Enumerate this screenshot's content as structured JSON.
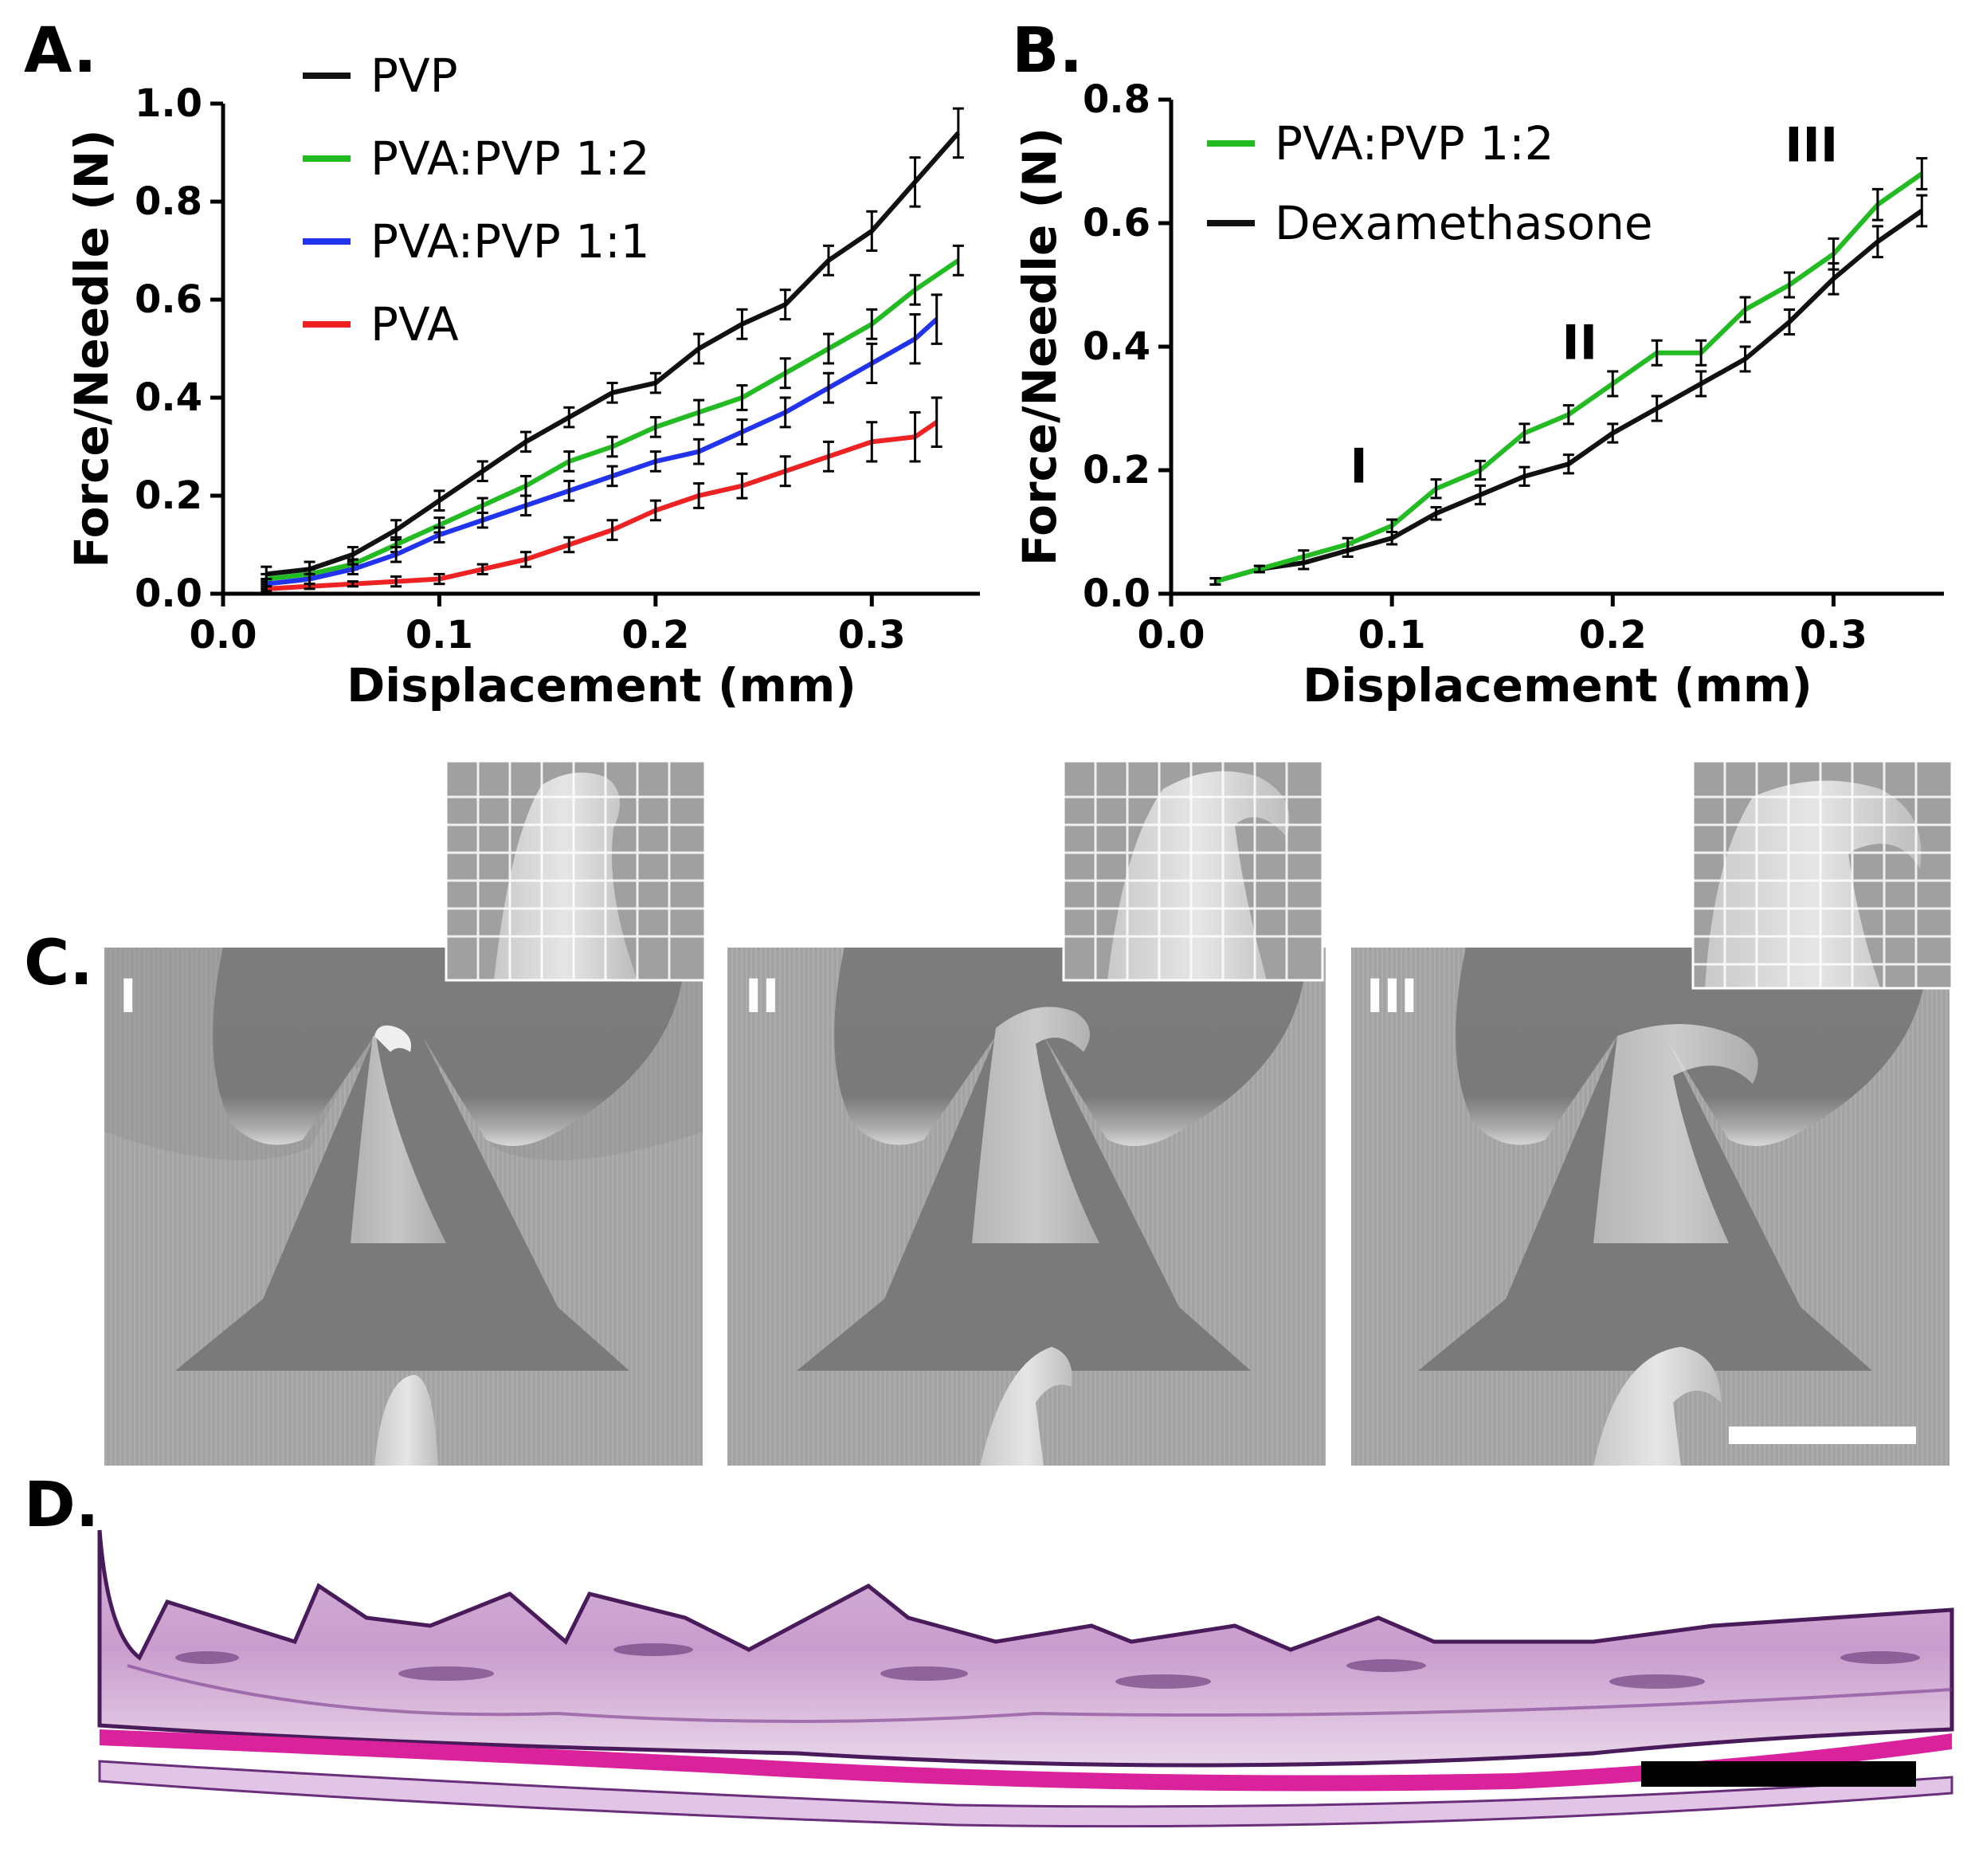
{
  "figure": {
    "panel_A": "A.",
    "panel_B": "B.",
    "panel_C": "C.",
    "panel_D": "D."
  },
  "colors": {
    "PVP": "#111111",
    "PVA:PVP 1:2": "#22bb22",
    "PVA:PVP 1:1": "#2233ee",
    "PVA": "#ee2222",
    "Dexamethasone": "#111111"
  },
  "chart_data": [
    {
      "id": "A",
      "type": "line",
      "xlabel": "Displacement (mm)",
      "ylabel": "Force/Needle (N)",
      "xlim": [
        0.0,
        0.35
      ],
      "ylim": [
        0.0,
        1.0
      ],
      "xticks": [
        0.0,
        0.1,
        0.2,
        0.3
      ],
      "xtick_labels": [
        "0.0",
        "0.1",
        "0.2",
        "0.3"
      ],
      "yticks": [
        0.0,
        0.2,
        0.4,
        0.6,
        0.8,
        1.0
      ],
      "ytick_labels": [
        "0.0",
        "0.2",
        "0.4",
        "0.6",
        "0.8",
        "1.0"
      ],
      "legend": [
        "PVP",
        "PVA:PVP 1:2",
        "PVA:PVP 1:1",
        "PVA"
      ],
      "series": [
        {
          "name": "PVP",
          "x": [
            0.02,
            0.04,
            0.06,
            0.08,
            0.1,
            0.12,
            0.14,
            0.16,
            0.18,
            0.2,
            0.22,
            0.24,
            0.26,
            0.28,
            0.3,
            0.32,
            0.34
          ],
          "y": [
            0.04,
            0.05,
            0.08,
            0.13,
            0.19,
            0.25,
            0.31,
            0.36,
            0.41,
            0.43,
            0.5,
            0.55,
            0.59,
            0.68,
            0.74,
            0.84,
            0.94
          ],
          "err": [
            0.015,
            0.015,
            0.015,
            0.02,
            0.02,
            0.02,
            0.02,
            0.02,
            0.02,
            0.02,
            0.03,
            0.03,
            0.03,
            0.03,
            0.04,
            0.05,
            0.05
          ]
        },
        {
          "name": "PVA:PVP 1:2",
          "x": [
            0.02,
            0.04,
            0.06,
            0.08,
            0.1,
            0.12,
            0.14,
            0.16,
            0.18,
            0.2,
            0.22,
            0.24,
            0.26,
            0.28,
            0.3,
            0.32,
            0.34
          ],
          "y": [
            0.03,
            0.04,
            0.06,
            0.1,
            0.14,
            0.18,
            0.22,
            0.27,
            0.3,
            0.34,
            0.37,
            0.4,
            0.45,
            0.5,
            0.55,
            0.62,
            0.68
          ],
          "err": [
            0.01,
            0.01,
            0.01,
            0.015,
            0.015,
            0.015,
            0.02,
            0.02,
            0.02,
            0.02,
            0.025,
            0.025,
            0.03,
            0.03,
            0.03,
            0.03,
            0.03
          ]
        },
        {
          "name": "PVA:PVP 1:1",
          "x": [
            0.02,
            0.04,
            0.06,
            0.08,
            0.1,
            0.12,
            0.14,
            0.16,
            0.18,
            0.2,
            0.22,
            0.24,
            0.26,
            0.28,
            0.3,
            0.32,
            0.33
          ],
          "y": [
            0.02,
            0.03,
            0.05,
            0.08,
            0.12,
            0.15,
            0.18,
            0.21,
            0.24,
            0.27,
            0.29,
            0.33,
            0.37,
            0.42,
            0.47,
            0.52,
            0.56
          ],
          "err": [
            0.01,
            0.01,
            0.01,
            0.015,
            0.015,
            0.015,
            0.02,
            0.02,
            0.02,
            0.02,
            0.025,
            0.025,
            0.03,
            0.03,
            0.04,
            0.05,
            0.05
          ]
        },
        {
          "name": "PVA",
          "x": [
            0.02,
            0.04,
            0.06,
            0.08,
            0.1,
            0.12,
            0.14,
            0.16,
            0.18,
            0.2,
            0.22,
            0.24,
            0.26,
            0.28,
            0.3,
            0.32,
            0.33
          ],
          "y": [
            0.01,
            0.015,
            0.02,
            0.025,
            0.03,
            0.05,
            0.07,
            0.1,
            0.13,
            0.17,
            0.2,
            0.22,
            0.25,
            0.28,
            0.31,
            0.32,
            0.35
          ],
          "err": [
            0.005,
            0.005,
            0.005,
            0.01,
            0.01,
            0.01,
            0.015,
            0.015,
            0.02,
            0.02,
            0.025,
            0.025,
            0.03,
            0.03,
            0.04,
            0.05,
            0.05
          ]
        }
      ]
    },
    {
      "id": "B",
      "type": "line",
      "xlabel": "Displacement (mm)",
      "ylabel": "Force/Needle (N)",
      "xlim": [
        0.0,
        0.35
      ],
      "ylim": [
        0.0,
        0.8
      ],
      "xticks": [
        0.0,
        0.1,
        0.2,
        0.3
      ],
      "xtick_labels": [
        "0.0",
        "0.1",
        "0.2",
        "0.3"
      ],
      "yticks": [
        0.0,
        0.2,
        0.4,
        0.6,
        0.8
      ],
      "ytick_labels": [
        "0.0",
        "0.2",
        "0.4",
        "0.6",
        "0.8"
      ],
      "legend": [
        "PVA:PVP 1:2",
        "Dexamethasone"
      ],
      "series": [
        {
          "name": "Dexamethasone",
          "x": [
            0.02,
            0.04,
            0.06,
            0.08,
            0.1,
            0.12,
            0.14,
            0.16,
            0.18,
            0.2,
            0.22,
            0.24,
            0.26,
            0.28,
            0.3,
            0.32,
            0.34
          ],
          "y": [
            0.02,
            0.04,
            0.05,
            0.07,
            0.09,
            0.13,
            0.16,
            0.19,
            0.21,
            0.26,
            0.3,
            0.34,
            0.38,
            0.44,
            0.51,
            0.57,
            0.62
          ],
          "err": [
            0.005,
            0.005,
            0.01,
            0.01,
            0.01,
            0.01,
            0.015,
            0.015,
            0.015,
            0.015,
            0.02,
            0.02,
            0.02,
            0.02,
            0.025,
            0.025,
            0.025
          ]
        },
        {
          "name": "PVA:PVP 1:2",
          "x": [
            0.02,
            0.04,
            0.06,
            0.08,
            0.1,
            0.12,
            0.14,
            0.16,
            0.18,
            0.2,
            0.22,
            0.24,
            0.26,
            0.28,
            0.3,
            0.32,
            0.34
          ],
          "y": [
            0.02,
            0.04,
            0.06,
            0.08,
            0.11,
            0.17,
            0.2,
            0.26,
            0.29,
            0.34,
            0.39,
            0.39,
            0.46,
            0.5,
            0.55,
            0.63,
            0.68
          ],
          "err": [
            0.005,
            0.005,
            0.01,
            0.01,
            0.01,
            0.015,
            0.015,
            0.015,
            0.015,
            0.02,
            0.02,
            0.02,
            0.02,
            0.02,
            0.025,
            0.025,
            0.025
          ]
        }
      ],
      "annotations": [
        {
          "text": "I",
          "x": 0.085,
          "y": 0.18
        },
        {
          "text": "II",
          "x": 0.185,
          "y": 0.38
        },
        {
          "text": "III",
          "x": 0.29,
          "y": 0.7
        }
      ]
    }
  ],
  "panel_C": {
    "labels": [
      "I",
      "II",
      "III"
    ]
  }
}
